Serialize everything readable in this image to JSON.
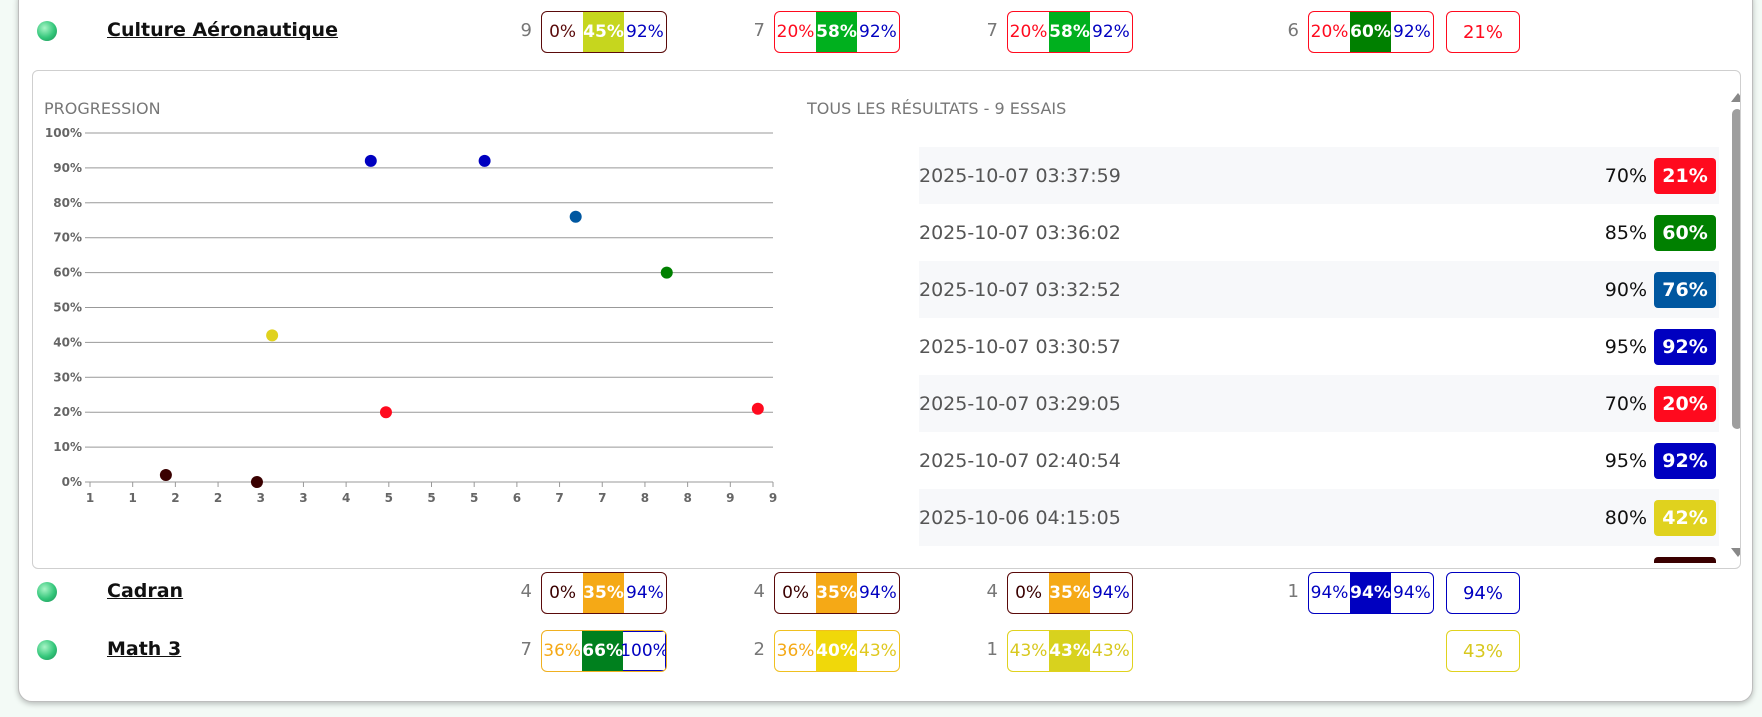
{
  "colors": {
    "red": "#ff0a1e",
    "dark": "#3a0000",
    "blue": "#0000c0",
    "midblue": "#0057a0",
    "green": "#008000",
    "yellow": "#e0d21e",
    "orange": "#f5a916",
    "lime": "#c6d61e",
    "brightgreen": "#00b01e"
  },
  "rows": [
    {
      "name": "Culture Aéronautique",
      "status_icon": "green-sphere-icon",
      "groups": [
        {
          "count": "9",
          "low": "0%",
          "mid": "45%",
          "high": "92%",
          "border": "#5a0a0a",
          "low_color": "#5a0a0a",
          "mid_bg": "#c6d61e",
          "high_color": "#0000c0"
        },
        {
          "count": "7",
          "low": "20%",
          "mid": "58%",
          "high": "92%",
          "border": "#ff0a1e",
          "low_color": "#ff0a1e",
          "mid_bg": "#00b01e",
          "high_color": "#0000c0"
        },
        {
          "count": "7",
          "low": "20%",
          "mid": "58%",
          "high": "92%",
          "border": "#ff0a1e",
          "low_color": "#ff0a1e",
          "mid_bg": "#00b01e",
          "high_color": "#0000c0"
        },
        {
          "count": "6",
          "low": "20%",
          "mid": "60%",
          "high": "92%",
          "border": "#ff0a1e",
          "low_color": "#ff0a1e",
          "mid_bg": "#008000",
          "high_color": "#0000c0"
        }
      ],
      "last": "21%",
      "last_color": "#ff0a1e"
    },
    {
      "name": "Cadran",
      "status_icon": "green-sphere-icon",
      "groups": [
        {
          "count": "4",
          "low": "0%",
          "mid": "35%",
          "high": "94%",
          "border": "#5a0a0a",
          "low_color": "#3a0000",
          "mid_bg": "#f5a916",
          "high_color": "#0000c0"
        },
        {
          "count": "4",
          "low": "0%",
          "mid": "35%",
          "high": "94%",
          "border": "#5a0a0a",
          "low_color": "#3a0000",
          "mid_bg": "#f5a916",
          "high_color": "#0000c0"
        },
        {
          "count": "4",
          "low": "0%",
          "mid": "35%",
          "high": "94%",
          "border": "#5a0a0a",
          "low_color": "#3a0000",
          "mid_bg": "#f5a916",
          "high_color": "#0000c0"
        },
        {
          "count": "1",
          "low": "94%",
          "mid": "94%",
          "high": "94%",
          "border": "#0000c0",
          "low_color": "#0000c0",
          "mid_bg": "#0000c0",
          "high_color": "#0000c0"
        }
      ],
      "last": "94%",
      "last_color": "#0000c0"
    },
    {
      "name": "Math 3",
      "status_icon": "green-sphere-icon",
      "groups": [
        {
          "count": "7",
          "low": "36%",
          "mid": "66%",
          "high": "100%",
          "border": "#f0b020",
          "low_color": "#f5a916",
          "mid_bg": "#00801e",
          "high_color": "#0000c0",
          "border_high": "#0000c0"
        },
        {
          "count": "2",
          "low": "36%",
          "mid": "40%",
          "high": "43%",
          "border": "#f0c020",
          "low_color": "#f5a916",
          "mid_bg": "#f0d80a",
          "high_color": "#e0c81e"
        },
        {
          "count": "1",
          "low": "43%",
          "mid": "43%",
          "high": "43%",
          "border": "#e0d21e",
          "low_color": "#d8c81e",
          "mid_bg": "#d8d21e",
          "high_color": "#d8c81e"
        },
        {
          "count": "",
          "low": "",
          "mid": "",
          "high": "",
          "border": "",
          "low_color": "",
          "mid_bg": "",
          "high_color": ""
        }
      ],
      "last": "43%",
      "last_color": "#e0d21e"
    }
  ],
  "progression": {
    "title": "PROGRESSION"
  },
  "chart_data": {
    "type": "scatter",
    "title": "PROGRESSION",
    "xlabel": "",
    "ylabel": "",
    "ylim": [
      0,
      100
    ],
    "y_ticks": [
      "0%",
      "10%",
      "20%",
      "30%",
      "40%",
      "50%",
      "60%",
      "70%",
      "80%",
      "90%",
      "100%"
    ],
    "x_tick_labels": [
      "1",
      "1",
      "2",
      "2",
      "3",
      "3",
      "4",
      "5",
      "5",
      "5",
      "6",
      "7",
      "7",
      "8",
      "8",
      "9",
      "9"
    ],
    "grid": true,
    "points": [
      {
        "x": 2,
        "y": 2,
        "color": "#3a0000"
      },
      {
        "x": 3.2,
        "y": 0,
        "color": "#3a0000"
      },
      {
        "x": 3.4,
        "y": 42,
        "color": "#e0d21e"
      },
      {
        "x": 4.7,
        "y": 92,
        "color": "#0000c0"
      },
      {
        "x": 4.9,
        "y": 20,
        "color": "#ff0a1e"
      },
      {
        "x": 6.2,
        "y": 92,
        "color": "#0000c0"
      },
      {
        "x": 7.4,
        "y": 76,
        "color": "#0057a0"
      },
      {
        "x": 8.6,
        "y": 60,
        "color": "#008000"
      },
      {
        "x": 9.8,
        "y": 21,
        "color": "#ff0a1e"
      }
    ]
  },
  "results": {
    "title": "TOUS LES RÉSULTATS - 9 ESSAIS",
    "items": [
      {
        "date": "2025-10-07 03:37:59",
        "pct": "70%",
        "score": "21%",
        "color": "#ff0a1e"
      },
      {
        "date": "2025-10-07 03:36:02",
        "pct": "85%",
        "score": "60%",
        "color": "#008000"
      },
      {
        "date": "2025-10-07 03:32:52",
        "pct": "90%",
        "score": "76%",
        "color": "#0057a0"
      },
      {
        "date": "2025-10-07 03:30:57",
        "pct": "95%",
        "score": "92%",
        "color": "#0000c0"
      },
      {
        "date": "2025-10-07 03:29:05",
        "pct": "70%",
        "score": "20%",
        "color": "#ff0a1e"
      },
      {
        "date": "2025-10-07 02:40:54",
        "pct": "95%",
        "score": "92%",
        "color": "#0000c0"
      },
      {
        "date": "2025-10-06 04:15:05",
        "pct": "80%",
        "score": "42%",
        "color": "#e0d21e"
      },
      {
        "date": "",
        "pct": "",
        "score": "",
        "color": "#3a0000"
      }
    ]
  }
}
